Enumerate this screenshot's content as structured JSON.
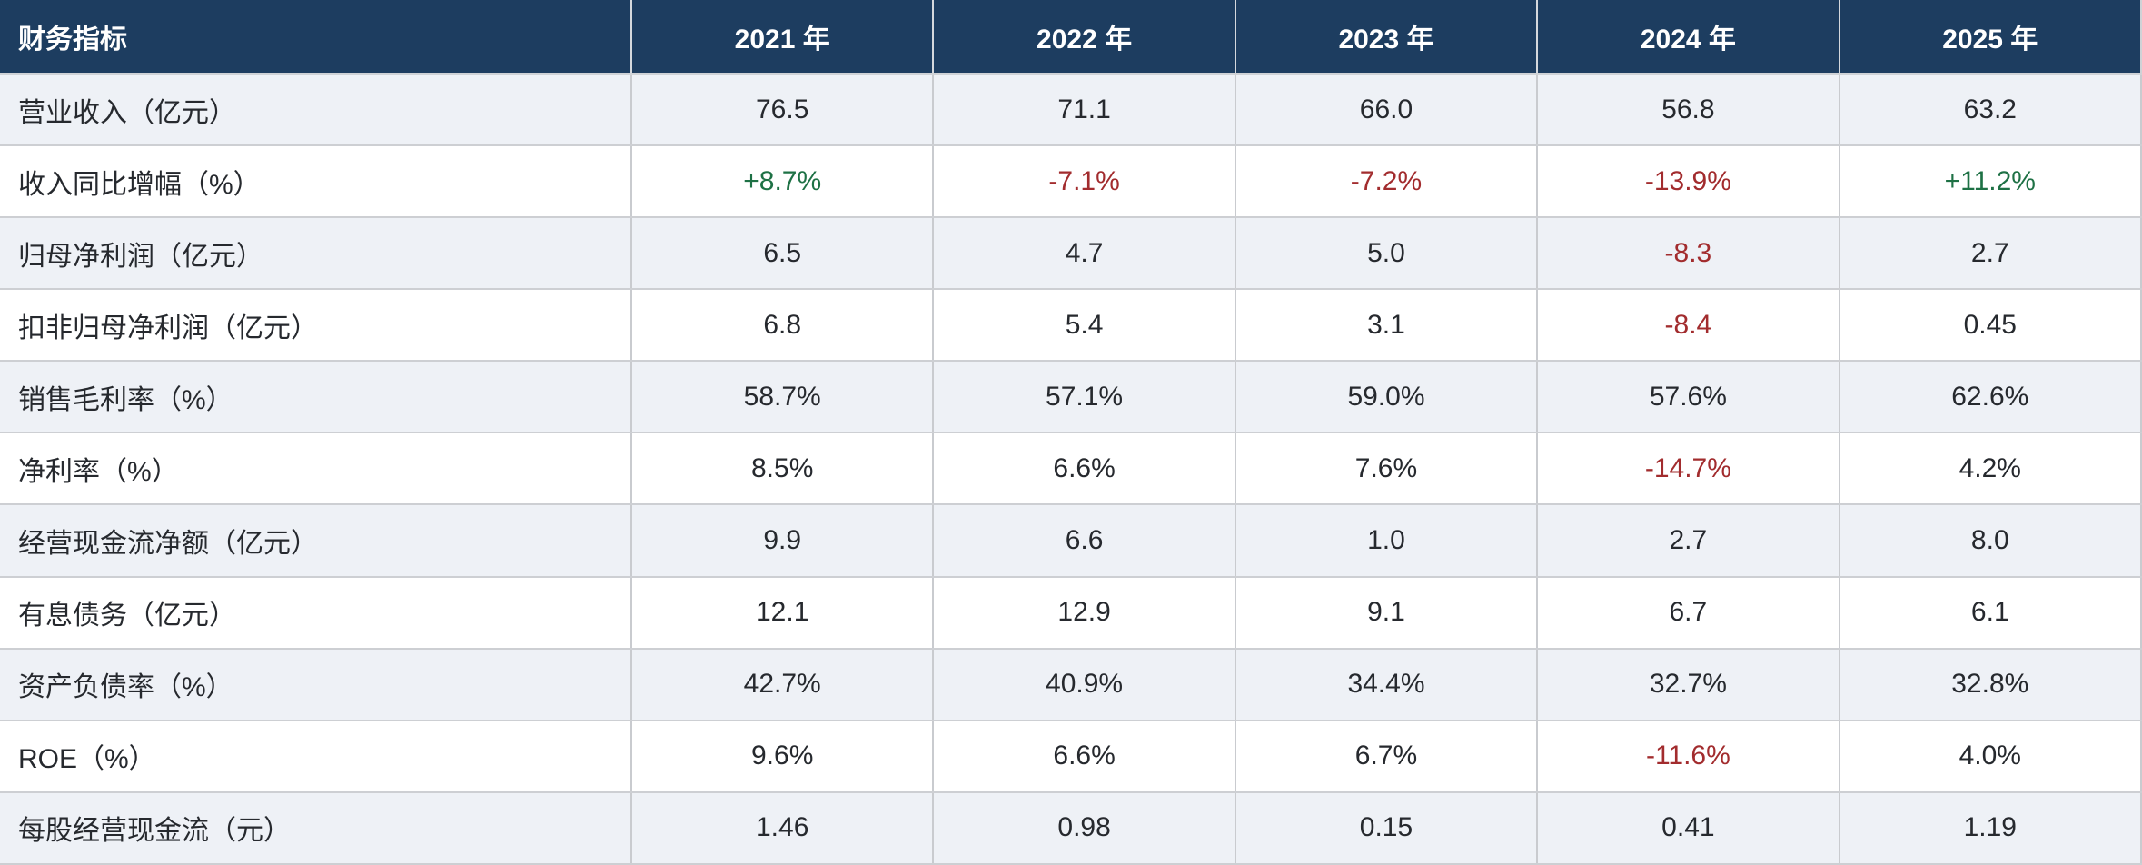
{
  "colors": {
    "header_bg": "#1d3d60",
    "header_text": "#ffffff",
    "row_bg": "#ffffff",
    "row_alt_bg": "#eef1f6",
    "grid_border": "#c9cbcf",
    "text": "#26292e",
    "positive": "#1e7145",
    "negative": "#a22c2e"
  },
  "chart_data": {
    "type": "table",
    "columns": [
      "财务指标",
      "2021 年",
      "2022 年",
      "2023 年",
      "2024 年",
      "2025 年"
    ],
    "rows": [
      {
        "label": "营业收入（亿元）",
        "values": [
          "76.5",
          "71.1",
          "66.0",
          "56.8",
          "63.2"
        ],
        "tones": [
          "neutral",
          "neutral",
          "neutral",
          "neutral",
          "neutral"
        ]
      },
      {
        "label": "收入同比增幅（%）",
        "values": [
          "+8.7%",
          "-7.1%",
          "-7.2%",
          "-13.9%",
          "+11.2%"
        ],
        "tones": [
          "positive",
          "negative",
          "negative",
          "negative",
          "positive"
        ]
      },
      {
        "label": "归母净利润（亿元）",
        "values": [
          "6.5",
          "4.7",
          "5.0",
          "-8.3",
          "2.7"
        ],
        "tones": [
          "neutral",
          "neutral",
          "neutral",
          "negative",
          "neutral"
        ]
      },
      {
        "label": "扣非归母净利润（亿元）",
        "values": [
          "6.8",
          "5.4",
          "3.1",
          "-8.4",
          "0.45"
        ],
        "tones": [
          "neutral",
          "neutral",
          "neutral",
          "negative",
          "neutral"
        ]
      },
      {
        "label": "销售毛利率（%）",
        "values": [
          "58.7%",
          "57.1%",
          "59.0%",
          "57.6%",
          "62.6%"
        ],
        "tones": [
          "neutral",
          "neutral",
          "neutral",
          "neutral",
          "neutral"
        ]
      },
      {
        "label": "净利率（%）",
        "values": [
          "8.5%",
          "6.6%",
          "7.6%",
          "-14.7%",
          "4.2%"
        ],
        "tones": [
          "neutral",
          "neutral",
          "neutral",
          "negative",
          "neutral"
        ]
      },
      {
        "label": "经营现金流净额（亿元）",
        "values": [
          "9.9",
          "6.6",
          "1.0",
          "2.7",
          "8.0"
        ],
        "tones": [
          "neutral",
          "neutral",
          "neutral",
          "neutral",
          "neutral"
        ]
      },
      {
        "label": "有息债务（亿元）",
        "values": [
          "12.1",
          "12.9",
          "9.1",
          "6.7",
          "6.1"
        ],
        "tones": [
          "neutral",
          "neutral",
          "neutral",
          "neutral",
          "neutral"
        ]
      },
      {
        "label": "资产负债率（%）",
        "values": [
          "42.7%",
          "40.9%",
          "34.4%",
          "32.7%",
          "32.8%"
        ],
        "tones": [
          "neutral",
          "neutral",
          "neutral",
          "neutral",
          "neutral"
        ]
      },
      {
        "label": "ROE（%）",
        "values": [
          "9.6%",
          "6.6%",
          "6.7%",
          "-11.6%",
          "4.0%"
        ],
        "tones": [
          "neutral",
          "neutral",
          "neutral",
          "negative",
          "neutral"
        ]
      },
      {
        "label": "每股经营现金流（元）",
        "values": [
          "1.46",
          "0.98",
          "0.15",
          "0.41",
          "1.19"
        ],
        "tones": [
          "neutral",
          "neutral",
          "neutral",
          "neutral",
          "neutral"
        ]
      }
    ],
    "layout": {
      "header_align": "center",
      "first_column_align": "left",
      "zebra_striping": true,
      "legend": "none",
      "grid": true
    }
  }
}
